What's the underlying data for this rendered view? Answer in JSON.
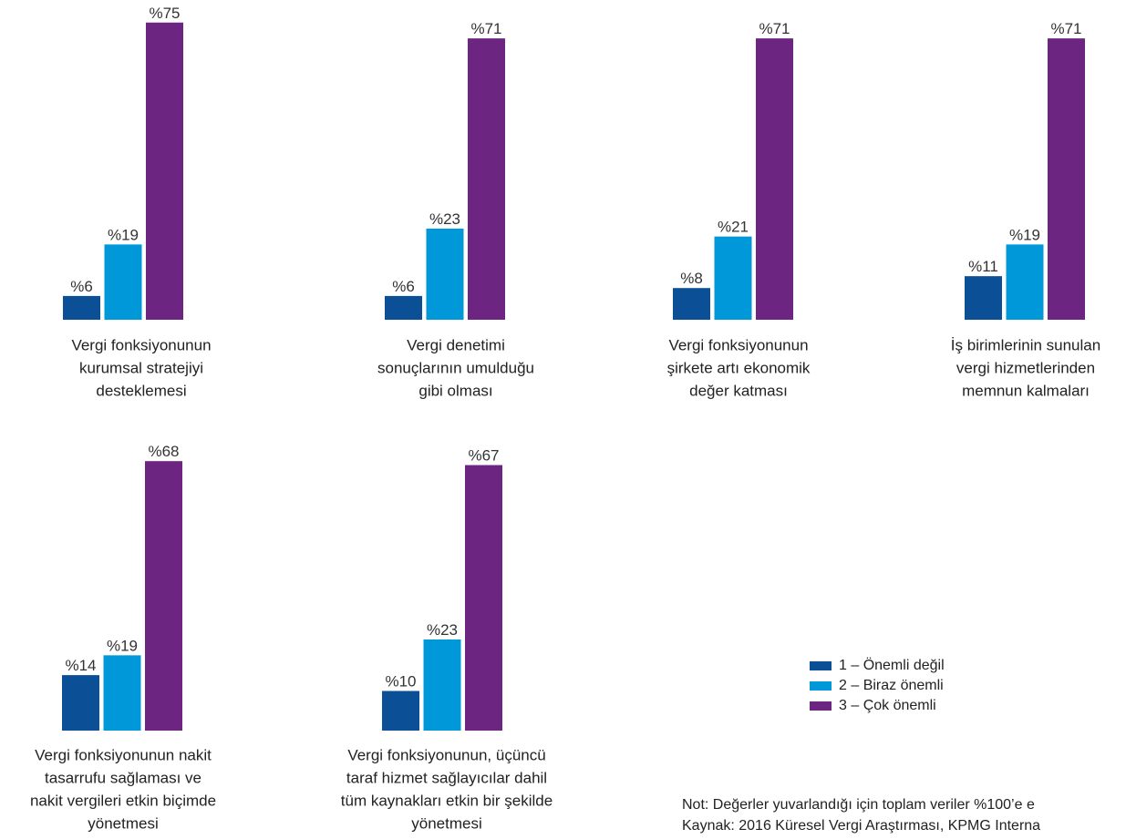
{
  "legend": {
    "entries": [
      {
        "name": "1 – Önemli değil",
        "color": "#0b4f96"
      },
      {
        "name": "2 – Biraz önemli",
        "color": "#0098d8"
      },
      {
        "name": "3 – Çok önemli",
        "color": "#6c2580"
      }
    ]
  },
  "notes": [
    "Not: Değerler yuvarlandığı için toplam veriler %100’e e",
    "Kaynak: 2016 Küresel Vergi Araştırması, KPMG Interna"
  ],
  "chart_data": [
    {
      "type": "bar",
      "caption": [
        "Vergi fonksiyonunun",
        "kurumsal stratejiyi",
        "desteklemesi"
      ],
      "values": [
        6,
        19,
        75
      ],
      "value_labels": [
        "%6",
        "%19",
        "%75"
      ]
    },
    {
      "type": "bar",
      "caption": [
        "Vergi denetimi",
        "sonuçlarının umulduğu",
        "gibi olması"
      ],
      "values": [
        6,
        23,
        71
      ],
      "value_labels": [
        "%6",
        "%23",
        "%71"
      ]
    },
    {
      "type": "bar",
      "caption": [
        "Vergi fonksiyonunun",
        "şirkete artı ekonomik",
        "değer katması"
      ],
      "values": [
        8,
        21,
        71
      ],
      "value_labels": [
        "%8",
        "%21",
        "%71"
      ]
    },
    {
      "type": "bar",
      "caption": [
        "İş birimlerinin sunulan",
        "vergi hizmetlerinden",
        "memnun kalmaları"
      ],
      "values": [
        11,
        19,
        71
      ],
      "value_labels": [
        "%11",
        "%19",
        "%71"
      ]
    },
    {
      "type": "bar",
      "caption": [
        "Vergi fonksiyonunun nakit",
        "tasarrufu sağlaması ve",
        "nakit vergileri etkin biçimde",
        "yönetmesi"
      ],
      "values": [
        14,
        19,
        68
      ],
      "value_labels": [
        "%14",
        "%19",
        "%68"
      ]
    },
    {
      "type": "bar",
      "caption": [
        "Vergi fonksiyonunun, üçüncü",
        "taraf hizmet sağlayıcılar dahil",
        "tüm kaynakları etkin bir şekilde",
        "yönetmesi"
      ],
      "values": [
        10,
        23,
        67
      ],
      "value_labels": [
        "%10",
        "%23",
        "%67"
      ]
    }
  ]
}
